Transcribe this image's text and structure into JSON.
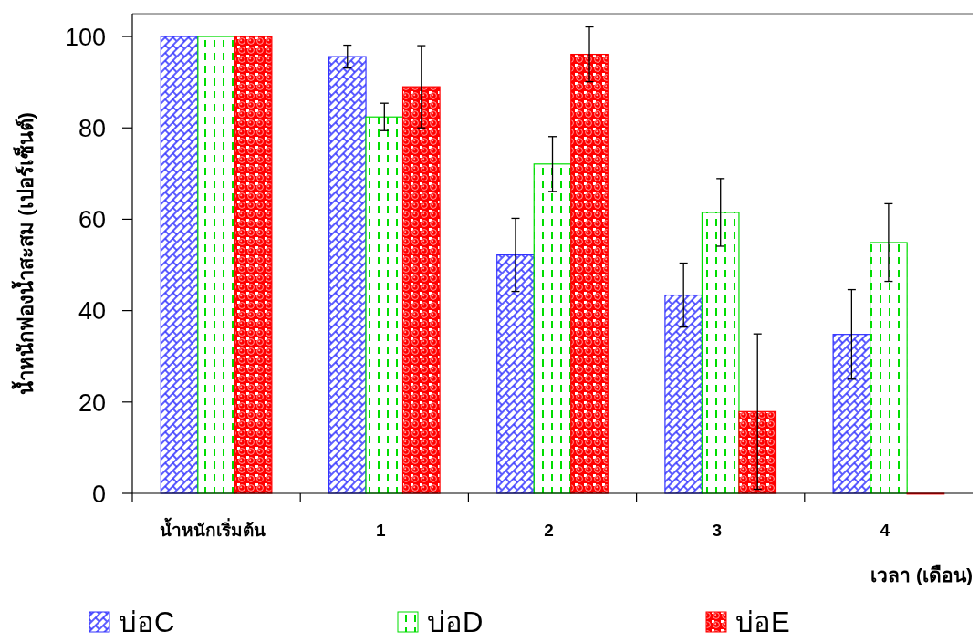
{
  "chart_data": {
    "type": "bar",
    "categories": [
      "น้ำหนักเริ่มต้น",
      "1",
      "2",
      "3",
      "4"
    ],
    "ylabel": "น้ำหนักฟองน้ำสะสม (เปอร์เซ็นต์)",
    "xlabel": "เวลา (เดือน)",
    "series": [
      {
        "name": "บ่อC",
        "color": "#3333ff",
        "values": [
          100,
          95.6,
          52.2,
          43.4,
          34.8
        ],
        "errors": [
          null,
          2.5,
          8,
          7,
          9.8
        ]
      },
      {
        "name": "บ่อD",
        "color": "#00dd00",
        "values": [
          100,
          82.4,
          72.1,
          61.5,
          54.9
        ],
        "errors": [
          null,
          3,
          6,
          7.4,
          8.5
        ]
      },
      {
        "name": "บ่อE",
        "color": "#ff0000",
        "values": [
          100,
          89.0,
          96.1,
          17.9,
          0
        ],
        "errors": [
          null,
          9,
          6,
          17,
          null
        ]
      }
    ],
    "ylim": [
      0,
      105
    ],
    "yticks": [
      0,
      20,
      40,
      60,
      80,
      100
    ],
    "grid": false,
    "legend": "bottom"
  }
}
